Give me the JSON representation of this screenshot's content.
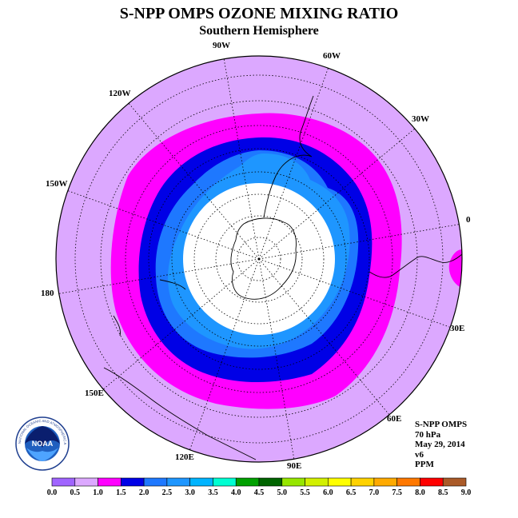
{
  "header": {
    "title": "S-NPP OMPS OZONE MIXING RATIO",
    "subtitle": "Southern Hemisphere"
  },
  "map": {
    "projection": "south-polar-stereographic",
    "longitude_labels": [
      "90W",
      "60W",
      "30W",
      "0",
      "30E",
      "60E",
      "90E",
      "120E",
      "150E",
      "180",
      "150W",
      "120W"
    ],
    "colors": {
      "background": "#dca8ff",
      "band_1_0_1_5": "#ff00ff",
      "band_1_5_2_0": "#0000e6",
      "band_2_0_2_5": "#1e78ff",
      "band_2_5_3_0": "#1e96ff",
      "polar_no_data": "#ffffff"
    }
  },
  "info": {
    "instrument": "S-NPP OMPS",
    "level": "70 hPa",
    "date": "May 29, 2014",
    "version": "v6",
    "units": "PPM"
  },
  "legend": {
    "tick_labels": [
      "0.0",
      "0.5",
      "1.0",
      "1.5",
      "2.0",
      "2.5",
      "3.0",
      "3.5",
      "4.0",
      "4.5",
      "5.0",
      "5.5",
      "6.0",
      "6.5",
      "7.0",
      "7.5",
      "8.0",
      "8.5",
      "9.0"
    ],
    "colors": [
      "#a064ff",
      "#dca8ff",
      "#ff00ff",
      "#0000e6",
      "#1e78ff",
      "#1e96ff",
      "#00b4ff",
      "#00ffd2",
      "#00a000",
      "#006400",
      "#96e600",
      "#d2f000",
      "#ffff00",
      "#ffd200",
      "#ffaa00",
      "#ff7800",
      "#ff0000",
      "#aa5a28"
    ]
  },
  "logo": {
    "text": "NOAA",
    "ring_text": "NATIONAL OCEANIC AND ATMOSPHERIC ADMINISTRATION · U.S. DEPARTMENT OF COMMERCE"
  }
}
